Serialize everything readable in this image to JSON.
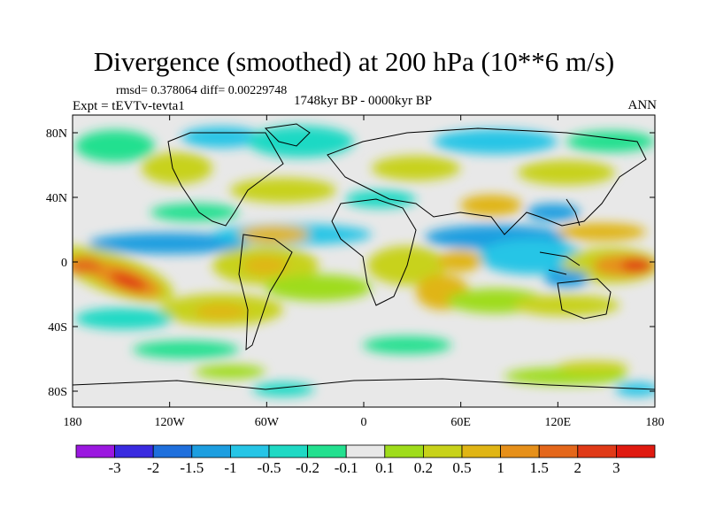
{
  "title": "Divergence (smoothed) at 200 hPa (10**6 m/s)",
  "stats": "rmsd= 0.378064 diff= 0.00229748",
  "experiment": "Expt = tEVTv-tevta1",
  "period": "1748kyr BP - 0000kyr BP",
  "season": "ANN",
  "lat_ticks": [
    "80N",
    "40N",
    "0",
    "40S",
    "80S"
  ],
  "lon_ticks": [
    "180",
    "120W",
    "60W",
    "0",
    "60E",
    "120E",
    "180"
  ],
  "colorbar": {
    "colors": [
      "#9b18e0",
      "#3a2be0",
      "#1f6fdc",
      "#1d9ee0",
      "#26c5e6",
      "#1fd9c4",
      "#23e08f",
      "#e8e8e8",
      "#9fdc1b",
      "#c8d21a",
      "#e0b515",
      "#e6901a",
      "#e4671b",
      "#e03a17",
      "#e01a10"
    ],
    "labels": [
      "-3",
      "-2",
      "-1.5",
      "-1",
      "-0.5",
      "-0.2",
      "-0.1",
      "0.1",
      "0.2",
      "0.5",
      "1",
      "1.5",
      "2",
      "3"
    ]
  }
}
